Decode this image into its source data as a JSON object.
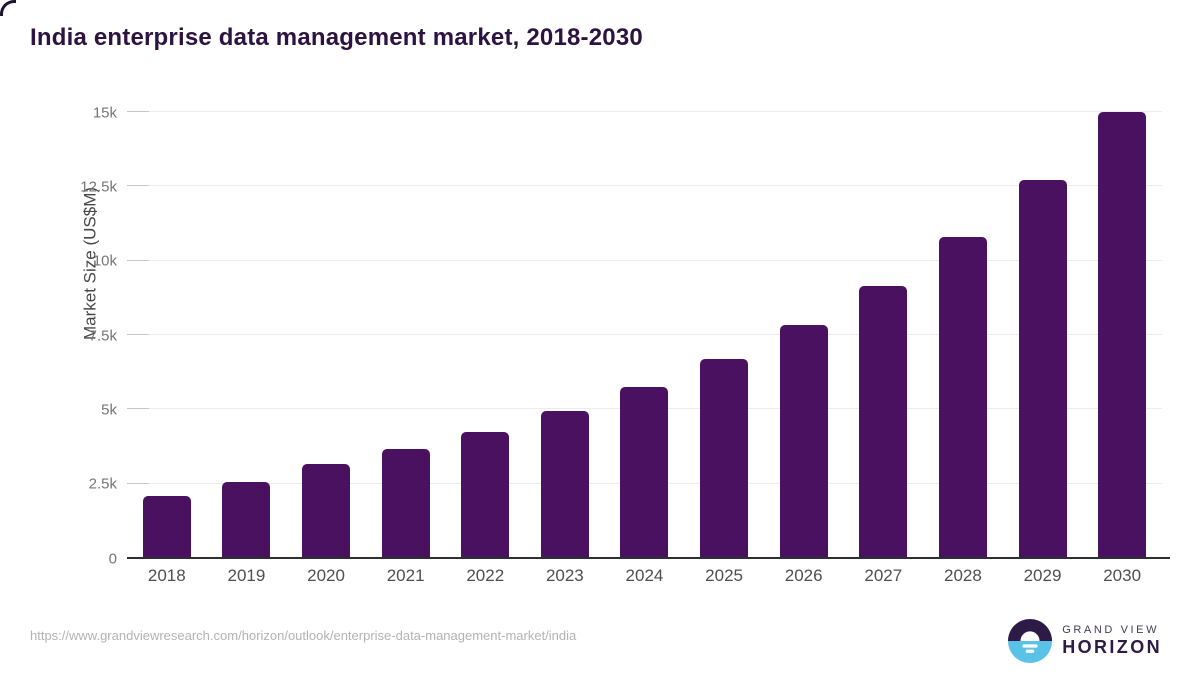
{
  "title": "India enterprise data management market, 2018-2030",
  "chart_data": {
    "type": "bar",
    "title": "India enterprise data management market, 2018-2030",
    "categories": [
      "2018",
      "2019",
      "2020",
      "2021",
      "2022",
      "2023",
      "2024",
      "2025",
      "2026",
      "2027",
      "2028",
      "2029",
      "2030"
    ],
    "values": [
      2080,
      2560,
      3160,
      3650,
      4250,
      4950,
      5760,
      6700,
      7850,
      9150,
      10790,
      12710,
      15000
    ],
    "xlabel": "",
    "ylabel": "Market Size (US$M)",
    "ylim": [
      0,
      15000
    ],
    "yticks": [
      {
        "value": 0,
        "label": "0"
      },
      {
        "value": 2500,
        "label": "2.5k"
      },
      {
        "value": 5000,
        "label": "5k"
      },
      {
        "value": 7500,
        "label": "7.5k"
      },
      {
        "value": 10000,
        "label": "10k"
      },
      {
        "value": 12500,
        "label": "12.5k"
      },
      {
        "value": 15000,
        "label": "15k"
      }
    ],
    "grid": "horizontal",
    "legend": "none",
    "bar_color": "#4a1161"
  },
  "colors": {
    "title": "#2d1340",
    "bar": "#4a1161",
    "gridline": "#ececec",
    "axis_line": "#2e2f36",
    "logo_blue": "#5bc2e7",
    "logo_dark": "#2e1a47"
  },
  "footer": {
    "source_url": "https://www.grandviewresearch.com/horizon/outlook/enterprise-data-management-market/india",
    "logo": {
      "line1": "GRAND VIEW",
      "line2": "HORIZON"
    }
  }
}
